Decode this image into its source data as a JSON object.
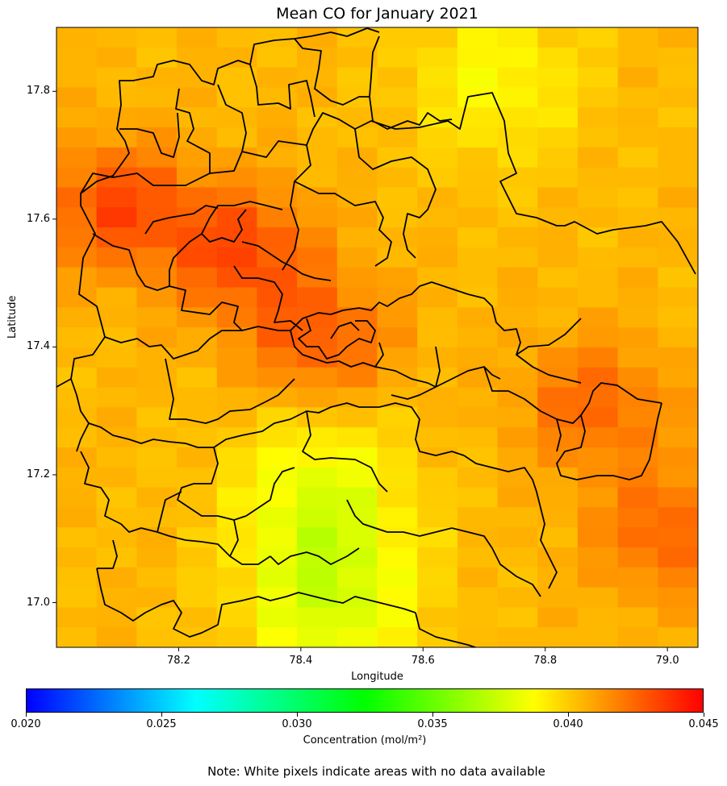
{
  "title": "Mean CO for January 2021",
  "xlabel": "Longitude",
  "ylabel": "Latitude",
  "colorbar_label": "Concentration (mol/m²)",
  "note": "Note: White pixels indicate areas with no data available",
  "colormap": [
    "#0000ff",
    "#00ffff",
    "#00ff00",
    "#ffff00",
    "#ff0000"
  ],
  "boundary_color": "#000000",
  "chart_data": {
    "type": "heatmap",
    "title": "Mean CO for January 2021",
    "xlabel": "Longitude",
    "ylabel": "Latitude",
    "xlim": [
      78.0,
      79.05
    ],
    "ylim": [
      16.93,
      17.9
    ],
    "xticks": [
      "78.2",
      "78.4",
      "78.6",
      "78.8",
      "79.0"
    ],
    "yticks": [
      "17.0",
      "17.2",
      "17.4",
      "17.6",
      "17.8"
    ],
    "xtick_values": [
      78.2,
      78.4,
      78.6,
      78.8,
      79.0
    ],
    "ytick_values": [
      17.0,
      17.2,
      17.4,
      17.6,
      17.8
    ],
    "colorbar": {
      "label": "Concentration (mol/m²)",
      "range": [
        0.02,
        0.045
      ],
      "ticks": [
        "0.020",
        "0.025",
        "0.030",
        "0.035",
        "0.040",
        "0.045"
      ],
      "tick_values": [
        0.02,
        0.025,
        0.03,
        0.035,
        0.04,
        0.045
      ]
    },
    "value_range_observed": [
      0.0375,
      0.0435
    ],
    "hotspots": [
      {
        "lon": 78.1,
        "lat": 17.62,
        "value": 0.0432
      },
      {
        "lon": 78.3,
        "lat": 17.55,
        "value": 0.0432
      },
      {
        "lon": 78.43,
        "lat": 17.41,
        "value": 0.0428
      },
      {
        "lon": 78.88,
        "lat": 17.31,
        "value": 0.0425
      },
      {
        "lon": 79.0,
        "lat": 17.11,
        "value": 0.0426
      }
    ],
    "lowspots": [
      {
        "lon": 78.45,
        "lat": 17.0,
        "value": 0.0378
      },
      {
        "lon": 78.43,
        "lat": 17.17,
        "value": 0.0382
      },
      {
        "lon": 78.72,
        "lat": 17.82,
        "value": 0.0388
      }
    ],
    "grid": false,
    "legend": "colorbar-bottom"
  }
}
